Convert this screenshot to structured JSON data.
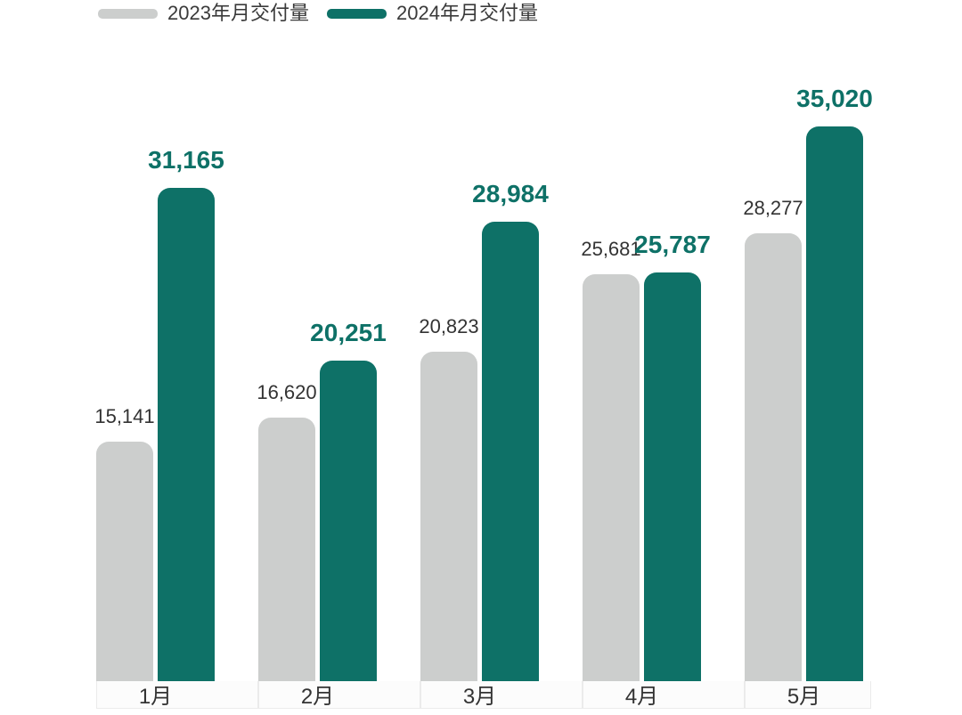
{
  "legend": {
    "items": [
      {
        "label": "2023年月交付量",
        "color": "#cccecd"
      },
      {
        "label": "2024年月交付量",
        "color": "#0e7167"
      }
    ]
  },
  "colors": {
    "background": "#ffffff",
    "series_2023_bar": "#cccecd",
    "series_2024_bar": "#0e7167",
    "value_label_2023": "#333333",
    "value_label_2024": "#0e7167",
    "month_label": "#333333",
    "axis_cell_bg": "#fcfcfc",
    "axis_cell_border": "#ebebeb"
  },
  "chart_data": {
    "type": "bar",
    "title": "",
    "xlabel": "",
    "ylabel": "",
    "categories": [
      "1月",
      "2月",
      "3月",
      "4月",
      "5月"
    ],
    "series": [
      {
        "name": "2023年月交付量",
        "color": "#cccecd",
        "values": [
          15141,
          16620,
          20823,
          25681,
          28277
        ],
        "data_labels": [
          "15,141",
          "16,620",
          "20,823",
          "25,681",
          "28,277"
        ]
      },
      {
        "name": "2024年月交付量",
        "color": "#0e7167",
        "values": [
          31165,
          20251,
          28984,
          25787,
          35020
        ],
        "data_labels": [
          "31,165",
          "20,251",
          "28,984",
          "25,787",
          "35,020"
        ]
      }
    ],
    "ylim": [
      0,
      35020
    ],
    "grid": false,
    "legend_position": "top-left"
  }
}
